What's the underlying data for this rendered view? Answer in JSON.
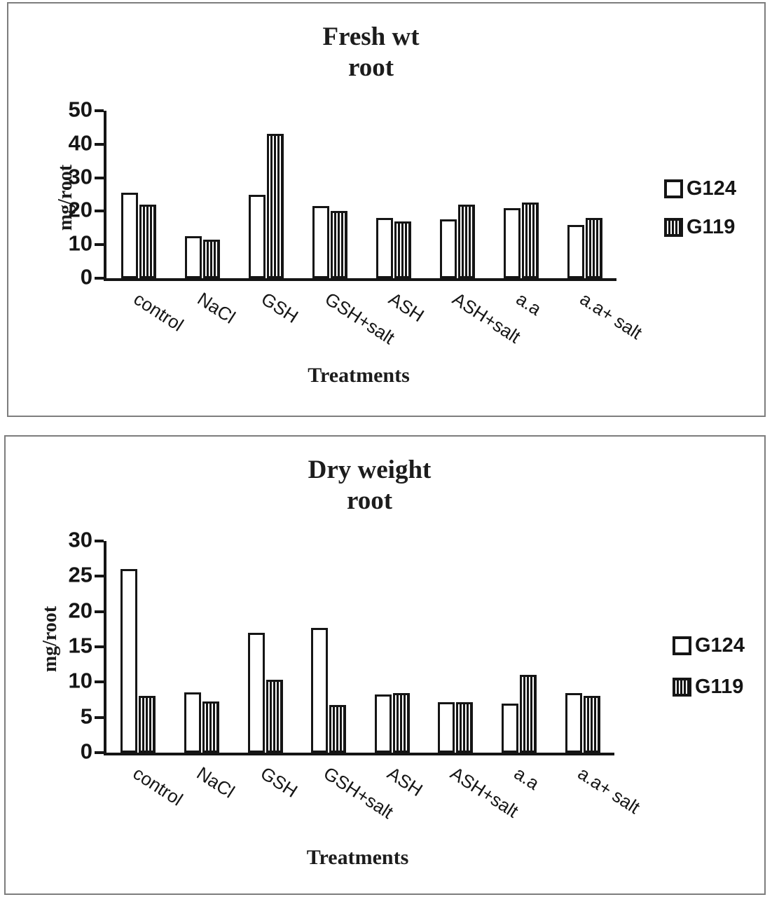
{
  "colors": {
    "background": "#ffffff",
    "panel_border": "#7d7d7d",
    "bar_outline": "#151515",
    "text": "#1c1c1c"
  },
  "chart_data": [
    {
      "type": "bar",
      "title": "Fresh wt",
      "subtitle": "root",
      "ylabel": "mg/root",
      "xlabel": "Treatments",
      "ylim": [
        0,
        50
      ],
      "yticks": [
        50,
        40,
        30,
        20,
        10,
        0
      ],
      "grid": false,
      "legend_position": "right",
      "categories": [
        "control",
        "NaCl",
        "GSH",
        "GSH+salt",
        "ASH",
        "ASH+salt",
        "a.a",
        "a.a+ salt"
      ],
      "series": [
        {
          "name": "G124",
          "fill": "white",
          "values": [
            25.5,
            12.5,
            25,
            21.5,
            18,
            17.5,
            21,
            16
          ]
        },
        {
          "name": "G119",
          "fill": "vertical-stripes",
          "values": [
            22,
            11.5,
            43,
            20,
            17,
            22,
            22.5,
            18
          ]
        }
      ]
    },
    {
      "type": "bar",
      "title": "Dry weight",
      "subtitle": "root",
      "ylabel": "mg/root",
      "xlabel": "Treatments",
      "ylim": [
        0,
        30
      ],
      "yticks": [
        30,
        25,
        20,
        15,
        10,
        5,
        0
      ],
      "grid": false,
      "legend_position": "right",
      "categories": [
        "control",
        "NaCl",
        "GSH",
        "GSH+salt",
        "ASH",
        "ASH+salt",
        "a.a",
        "a.a+ salt"
      ],
      "series": [
        {
          "name": "G124",
          "fill": "white",
          "values": [
            26,
            8.5,
            17,
            17.7,
            8.2,
            7.2,
            7,
            8.4
          ]
        },
        {
          "name": "G119",
          "fill": "vertical-stripes",
          "values": [
            8,
            7.3,
            10.3,
            6.8,
            8.4,
            7.2,
            11,
            8
          ]
        }
      ]
    }
  ]
}
